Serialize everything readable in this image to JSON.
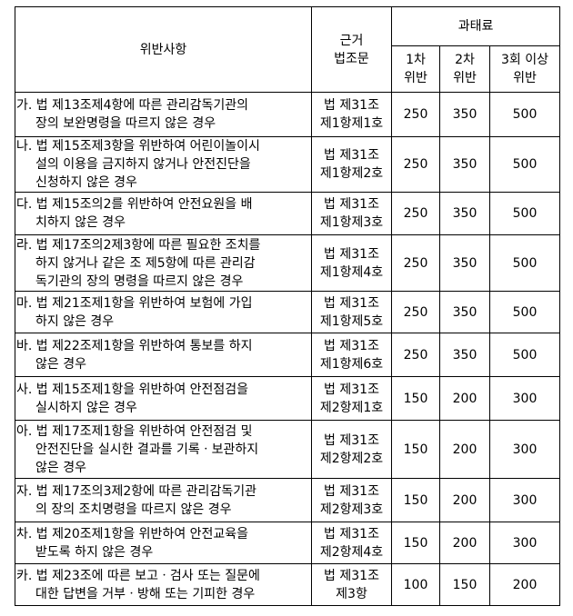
{
  "header": {
    "violation": "위반사항",
    "basis": [
      "근거",
      "법조문"
    ],
    "fine": "과태료",
    "first": [
      "1차",
      "위반"
    ],
    "second": [
      "2차",
      "위반"
    ],
    "third": [
      "3회 이상",
      "위반"
    ]
  },
  "rows": [
    {
      "desc": [
        "가. 법 제13조제4항에 따른 관리감독기관의",
        "장의 보완명령을 따르지 않은 경우"
      ],
      "law": [
        "법 제31조",
        "제1항제1호"
      ],
      "first": "250",
      "second": "350",
      "third": "500"
    },
    {
      "desc": [
        "나. 법 제15조제3항을 위반하여 어린이놀이시",
        "설의 이용을 금지하지 않거나 안전진단을",
        "신청하지 않은 경우"
      ],
      "law": [
        "법 제31조",
        "제1항제2호"
      ],
      "first": "250",
      "second": "350",
      "third": "500"
    },
    {
      "desc": [
        "다. 법 제15조의2를 위반하여 안전요원을 배",
        "치하지 않은 경우"
      ],
      "law": [
        "법 제31조",
        "제1항제3호"
      ],
      "first": "250",
      "second": "350",
      "third": "500"
    },
    {
      "desc": [
        "라. 법 제17조의2제3항에 따른 필요한 조치를",
        "하지 않거나 같은 조 제5항에 따른 관리감",
        "독기관의 장의 명령을 따르지 않은 경우"
      ],
      "law": [
        "법 제31조",
        "제1항제4호"
      ],
      "first": "250",
      "second": "350",
      "third": "500"
    },
    {
      "desc": [
        "마. 법 제21조제1항을 위반하여 보험에 가입",
        "하지 않은 경우"
      ],
      "law": [
        "법 제31조",
        "제1항제5호"
      ],
      "first": "250",
      "second": "350",
      "third": "500"
    },
    {
      "desc": [
        "바. 법 제22조제1항을 위반하여 통보를 하지",
        "않은 경우"
      ],
      "law": [
        "법 제31조",
        "제1항제6호"
      ],
      "first": "250",
      "second": "350",
      "third": "500"
    },
    {
      "desc": [
        "사. 법 제15조제1항을 위반하여 안전점검을",
        "실시하지 않은 경우"
      ],
      "law": [
        "법 제31조",
        "제2항제1호"
      ],
      "first": "150",
      "second": "200",
      "third": "300"
    },
    {
      "desc": [
        "아. 법 제17조제1항을 위반하여 안전점검 및",
        "안전진단을 실시한 결과를 기록ㆍ보관하지",
        "않은 경우"
      ],
      "law": [
        "법 제31조",
        "제2항제2호"
      ],
      "first": "150",
      "second": "200",
      "third": "300"
    },
    {
      "desc": [
        "자. 법 제17조의3제2항에 따른 관리감독기관",
        "의 장의 조치명령을 따르지 않은 경우"
      ],
      "law": [
        "법 제31조",
        "제2항제3호"
      ],
      "first": "150",
      "second": "200",
      "third": "300"
    },
    {
      "desc": [
        "차. 법 제20조제1항을 위반하여 안전교육을",
        "받도록 하지 않은 경우"
      ],
      "law": [
        "법 제31조",
        "제2항제4호"
      ],
      "first": "150",
      "second": "200",
      "third": "300"
    },
    {
      "desc": [
        "카. 법 제23조에 따른 보고ㆍ검사 또는 질문에",
        "대한 답변을 거부ㆍ방해 또는 기피한 경우"
      ],
      "law": [
        "법 제31조",
        "제3항"
      ],
      "first": "100",
      "second": "150",
      "third": "200"
    }
  ]
}
